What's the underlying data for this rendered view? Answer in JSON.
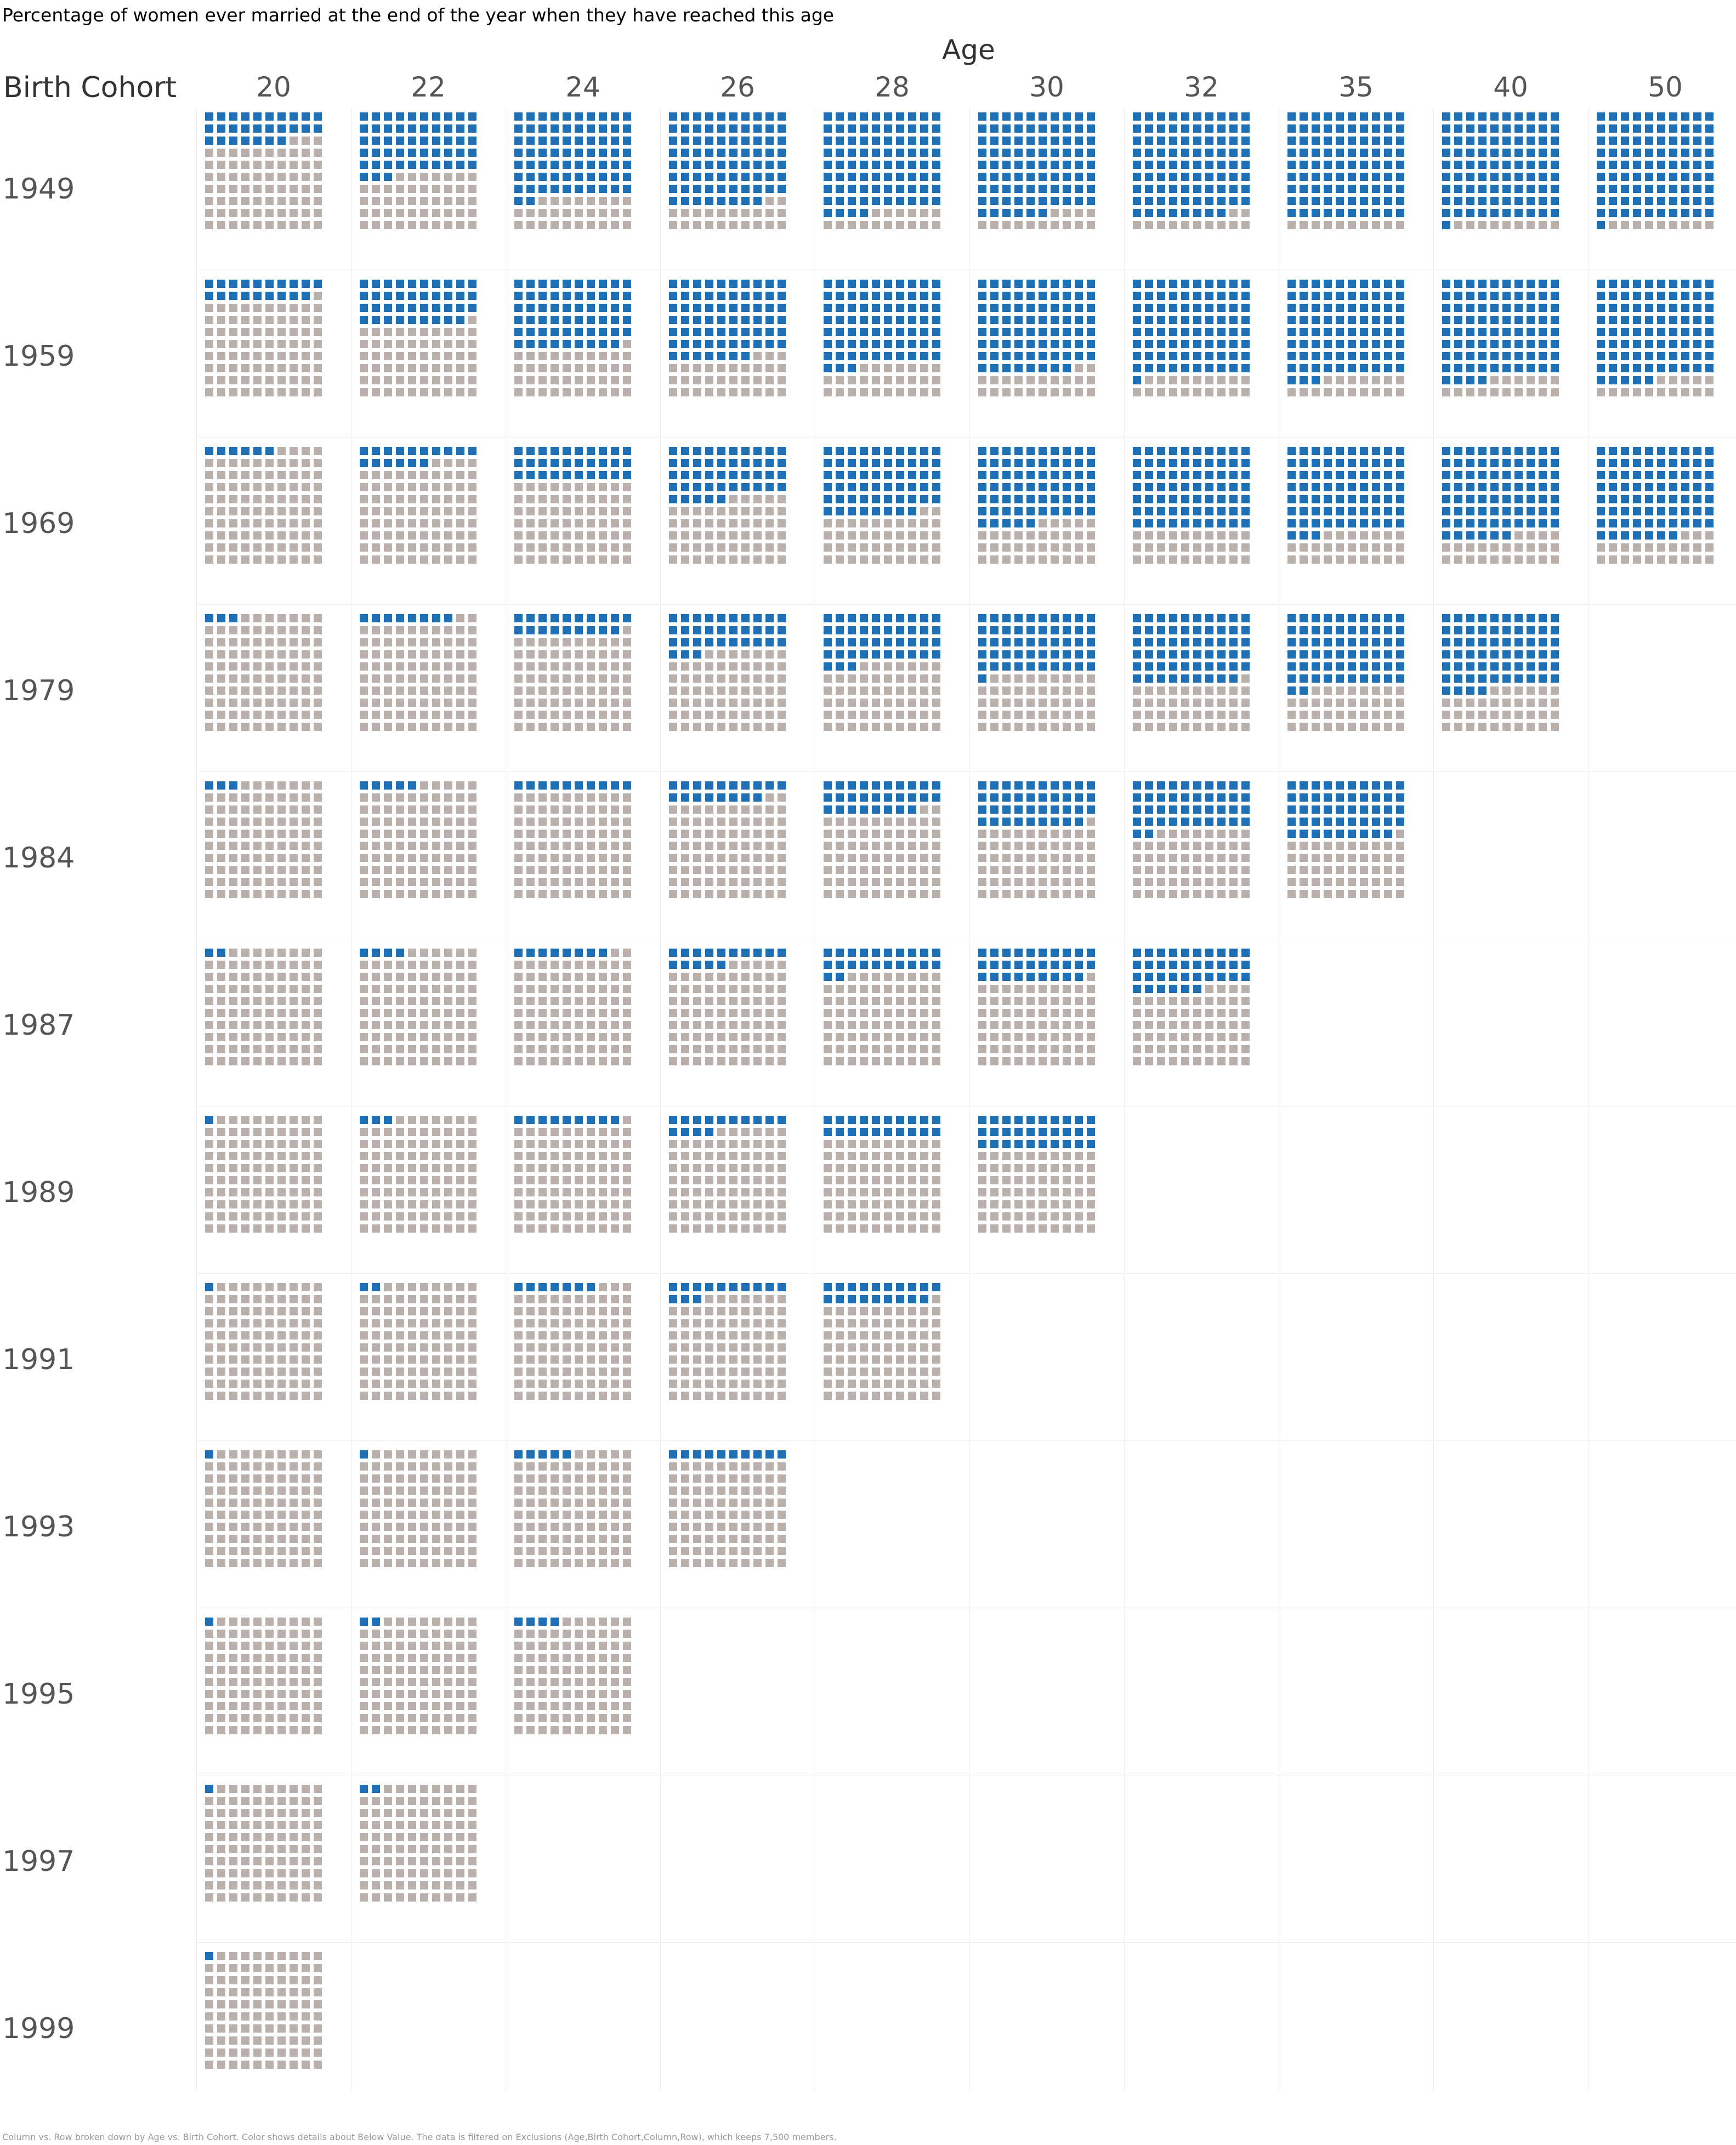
{
  "chart_data": {
    "type": "waffle",
    "title": "Percentage of women ever married at the end of the year when they have reached this age",
    "column_axis_title": "Age",
    "row_axis_title": "Birth Cohort",
    "columns": [
      "20",
      "22",
      "24",
      "26",
      "28",
      "30",
      "32",
      "35",
      "40",
      "50"
    ],
    "rows": [
      "1949",
      "1959",
      "1969",
      "1979",
      "1984",
      "1987",
      "1989",
      "1991",
      "1993",
      "1995",
      "1997",
      "1999"
    ],
    "values": [
      [
        27,
        53,
        72,
        78,
        84,
        86,
        88,
        90,
        91,
        91
      ],
      [
        19,
        39,
        59,
        67,
        73,
        78,
        81,
        83,
        84,
        85
      ],
      [
        6,
        16,
        30,
        45,
        58,
        65,
        70,
        73,
        76,
        77
      ],
      [
        3,
        8,
        19,
        33,
        43,
        51,
        59,
        62,
        64,
        null
      ],
      [
        3,
        5,
        10,
        18,
        28,
        39,
        42,
        49,
        null,
        null
      ],
      [
        2,
        4,
        8,
        15,
        22,
        29,
        36,
        null,
        null,
        null
      ],
      [
        1,
        3,
        9,
        14,
        20,
        30,
        null,
        null,
        null,
        null
      ],
      [
        1,
        2,
        7,
        13,
        19,
        null,
        null,
        null,
        null,
        null
      ],
      [
        1,
        1,
        5,
        10,
        null,
        null,
        null,
        null,
        null,
        null
      ],
      [
        1,
        2,
        4,
        null,
        null,
        null,
        null,
        null,
        null,
        null
      ],
      [
        1,
        2,
        null,
        null,
        null,
        null,
        null,
        null,
        null,
        null
      ],
      [
        1,
        null,
        null,
        null,
        null,
        null,
        null,
        null,
        null,
        null
      ]
    ],
    "units": "percent",
    "color_married": "#1f6fb4",
    "color_not_married": "#bab0ac",
    "footnote": "Column vs. Row broken down by Age vs. Birth Cohort.  Color shows details about Below Value. The data is filtered on Exclusions (Age,Birth Cohort,Column,Row), which keeps 7,500 members."
  }
}
